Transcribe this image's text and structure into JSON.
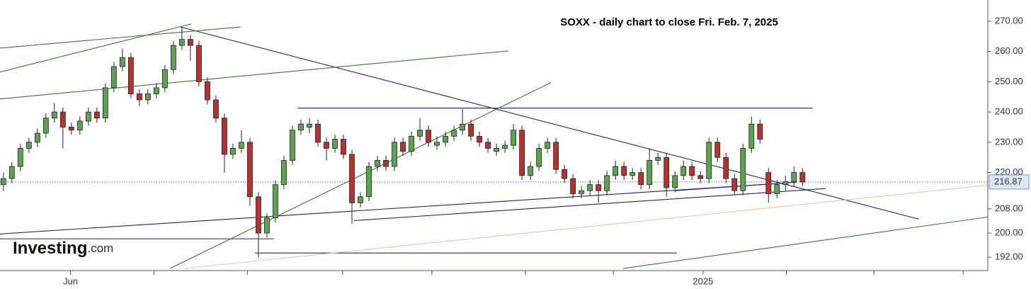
{
  "chart_data": {
    "type": "candlestick",
    "title": "SOXX - daily chart to close Fri. Feb. 7, 2025",
    "logo": {
      "main": "Investing",
      "sub": ".com"
    },
    "up_color": "#5ca34f",
    "down_color": "#b5322e",
    "candles": [
      [
        216,
        220,
        214,
        218
      ],
      [
        218,
        223.5,
        216.5,
        222
      ],
      [
        222,
        229.5,
        220.5,
        228
      ],
      [
        228,
        231.5,
        226.5,
        230
      ],
      [
        230,
        234.5,
        228.5,
        233
      ],
      [
        233,
        239.5,
        231.5,
        238
      ],
      [
        238,
        243,
        236.5,
        240
      ],
      [
        240,
        241.5,
        228,
        235
      ],
      [
        235,
        236.5,
        232.5,
        234
      ],
      [
        234,
        238.5,
        232.5,
        237
      ],
      [
        237,
        241.5,
        235.5,
        240
      ],
      [
        240,
        241.5,
        236.5,
        238
      ],
      [
        238,
        249.5,
        236.5,
        248
      ],
      [
        248,
        256.5,
        246.5,
        255
      ],
      [
        255,
        261,
        253.5,
        258
      ],
      [
        258,
        259.5,
        244.5,
        246
      ],
      [
        246,
        247.5,
        242,
        244
      ],
      [
        244,
        247.5,
        242.5,
        246
      ],
      [
        246,
        249.5,
        244.5,
        248
      ],
      [
        248,
        255.5,
        246.5,
        254
      ],
      [
        254,
        263.5,
        252.5,
        262
      ],
      [
        262,
        268,
        260.5,
        264
      ],
      [
        264,
        265.5,
        257,
        262
      ],
      [
        262,
        263.5,
        248.5,
        250
      ],
      [
        250,
        251.5,
        242.5,
        244
      ],
      [
        244,
        245.5,
        236.5,
        238
      ],
      [
        238,
        239.5,
        220,
        226
      ],
      [
        226,
        229.5,
        224.5,
        228
      ],
      [
        228,
        234,
        226.5,
        230
      ],
      [
        230,
        231.5,
        209,
        212
      ],
      [
        212,
        213.5,
        192,
        200
      ],
      [
        200,
        206.5,
        198.5,
        205
      ],
      [
        205,
        217.5,
        203.5,
        216
      ],
      [
        216,
        225.5,
        214.5,
        224
      ],
      [
        224,
        235.5,
        222.5,
        234
      ],
      [
        234,
        237.5,
        232.5,
        236
      ],
      [
        235,
        238,
        233,
        236
      ],
      [
        236,
        237.5,
        228.5,
        230
      ],
      [
        230,
        231.5,
        224,
        228
      ],
      [
        228,
        232.5,
        226.5,
        231
      ],
      [
        231,
        232.5,
        224.5,
        226
      ],
      [
        226,
        227.5,
        203,
        210
      ],
      [
        210,
        213.5,
        208.5,
        212
      ],
      [
        212,
        223.5,
        210.5,
        222
      ],
      [
        222,
        225.5,
        220.5,
        224
      ],
      [
        224,
        225.5,
        220.5,
        222
      ],
      [
        222,
        231.5,
        220.5,
        230
      ],
      [
        230,
        231.5,
        225.5,
        227
      ],
      [
        227,
        233.5,
        225.5,
        232
      ],
      [
        232,
        238,
        230.5,
        234
      ],
      [
        234,
        235.5,
        228.5,
        230
      ],
      [
        229,
        232,
        227.5,
        230
      ],
      [
        230,
        233.5,
        228.5,
        232
      ],
      [
        232,
        235.5,
        230.5,
        234
      ],
      [
        234,
        241,
        232.5,
        236
      ],
      [
        236,
        237.5,
        230.5,
        232
      ],
      [
        232,
        233.5,
        228.5,
        230
      ],
      [
        230,
        231.5,
        226.5,
        228
      ],
      [
        227,
        229.5,
        225.5,
        228
      ],
      [
        228,
        230.5,
        226.5,
        229
      ],
      [
        229,
        236,
        227.5,
        234
      ],
      [
        234,
        235.5,
        217.5,
        219
      ],
      [
        219,
        223.5,
        217.5,
        222
      ],
      [
        222,
        229.5,
        220.5,
        228
      ],
      [
        228,
        231.5,
        226.5,
        230
      ],
      [
        230,
        231.5,
        219.5,
        221
      ],
      [
        221,
        222.5,
        216.5,
        218
      ],
      [
        218,
        219.5,
        211.5,
        213
      ],
      [
        213,
        215.5,
        211.5,
        214
      ],
      [
        214,
        217.5,
        212.5,
        216
      ],
      [
        216,
        217.5,
        210,
        214
      ],
      [
        214,
        220.5,
        212.5,
        219
      ],
      [
        219,
        224,
        217.5,
        222
      ],
      [
        222,
        223.5,
        217.5,
        219
      ],
      [
        219,
        221.5,
        217.5,
        220
      ],
      [
        220,
        221.5,
        214.5,
        216
      ],
      [
        216,
        228,
        214.5,
        224
      ],
      [
        224,
        226.5,
        222.5,
        225
      ],
      [
        225,
        226.5,
        212,
        215
      ],
      [
        215,
        220.5,
        213.5,
        219
      ],
      [
        219,
        224,
        217.5,
        222
      ],
      [
        222,
        223.5,
        217.5,
        219
      ],
      [
        219,
        220.5,
        216.5,
        218
      ],
      [
        218,
        231.5,
        216.5,
        230
      ],
      [
        230,
        231.5,
        223.5,
        225
      ],
      [
        225,
        226.5,
        216.5,
        218
      ],
      [
        218,
        219.5,
        212.5,
        214
      ],
      [
        214,
        229.5,
        212.5,
        228
      ],
      [
        228,
        238.5,
        226.5,
        236
      ],
      [
        236,
        237.5,
        229.5,
        231
      ],
      [
        220,
        221.5,
        210,
        213
      ],
      [
        213,
        217.5,
        211.5,
        216
      ],
      [
        216,
        219,
        214,
        217
      ],
      [
        217,
        222,
        215.5,
        220
      ],
      [
        220,
        221.5,
        215.5,
        216.87
      ]
    ],
    "last_price": 216.87,
    "xlim": [
      -0.4,
      115.8
    ],
    "ylim": [
      187.6,
      277
    ],
    "yticks": [
      {
        "value": 270,
        "label": "270.00"
      },
      {
        "value": 260,
        "label": "260.00"
      },
      {
        "value": 250,
        "label": "250.00"
      },
      {
        "value": 240,
        "label": "240.00"
      },
      {
        "value": 230,
        "label": "230.00"
      },
      {
        "value": 220,
        "label": "220.00"
      },
      {
        "value": 208,
        "label": "208.00"
      },
      {
        "value": 200,
        "label": "200.00"
      },
      {
        "value": 192,
        "label": "192.00"
      }
    ],
    "xticks": [
      {
        "value": 7.9,
        "label": "Jun"
      },
      {
        "value": 82.3,
        "label": "2025"
      }
    ],
    "xminor": [
      17.7,
      28.7,
      39.9,
      50.4,
      61.4,
      71.75,
      92.1,
      102.4,
      112.9
    ],
    "trendlines": [
      {
        "color": "#1f1f8f",
        "points": [
          [
            20.8,
            268.1
          ],
          [
            107.7,
            204.6
          ]
        ]
      },
      {
        "color": "#1f1f8f",
        "points": [
          [
            34.6,
            241.3
          ],
          [
            95.2,
            241.3
          ]
        ]
      },
      {
        "color": "#1f1f8f",
        "points": [
          [
            41.25,
            204.1
          ],
          [
            96.7,
            214.7
          ]
        ]
      },
      {
        "color": "#1f1f8f",
        "points": [
          [
            -0.42,
            199.7
          ],
          [
            90.8,
            216.3
          ]
        ]
      },
      {
        "color": "#1f1f8f",
        "points": [
          [
            -0.42,
            198.1
          ],
          [
            31.8,
            198.1
          ]
        ]
      },
      {
        "color": "#1f1f8f",
        "points": [
          [
            29.6,
            193.4
          ],
          [
            79.2,
            193.4
          ]
        ]
      },
      {
        "color": "#1f1f8f",
        "points": [
          [
            79,
            214
          ],
          [
            93.3,
            216.8
          ]
        ]
      },
      {
        "color": "#3a7a2c",
        "points": [
          [
            -0.42,
            261.1
          ],
          [
            27.9,
            268.1
          ]
        ]
      },
      {
        "color": "#3a7a2c",
        "points": [
          [
            -0.42,
            253.2
          ],
          [
            22.1,
            269.1
          ]
        ]
      },
      {
        "color": "#3a7a2c",
        "points": [
          [
            -0.42,
            244.3
          ],
          [
            59.4,
            260.2
          ]
        ]
      },
      {
        "color": "#3a7a2c",
        "points": [
          [
            19.6,
            188.3
          ],
          [
            64.4,
            249.7
          ]
        ]
      },
      {
        "color": "#3a7a2c",
        "points": [
          [
            72.9,
            188.3
          ],
          [
            115.8,
            205.3
          ]
        ]
      },
      {
        "color": "#e8c8a8",
        "points": [
          [
            21.25,
            188.3
          ],
          [
            115.8,
            215.8
          ]
        ]
      }
    ]
  }
}
